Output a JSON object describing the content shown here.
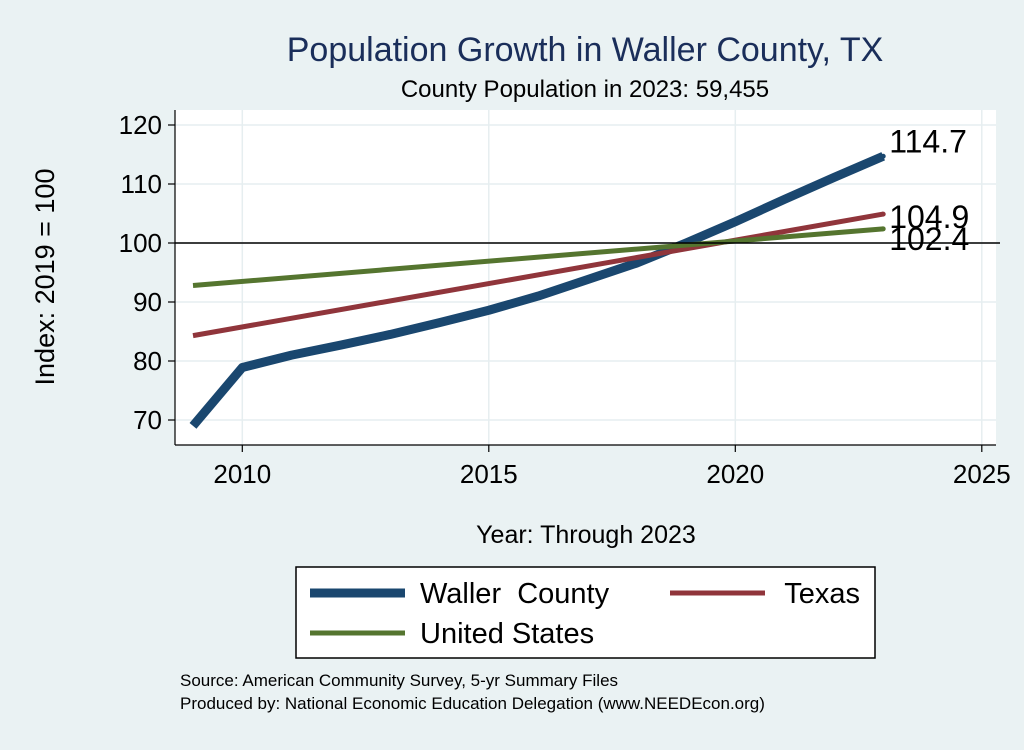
{
  "chart_data": {
    "type": "line",
    "title": "Population Growth in Waller County, TX",
    "subtitle": "County Population in 2023: 59,455",
    "xlabel": "Year: Through 2023",
    "ylabel": "Index: 2019 = 100",
    "xlim": [
      2009,
      2025
    ],
    "ylim": [
      66,
      122
    ],
    "xticks": [
      2010,
      2015,
      2020,
      2025
    ],
    "yticks": [
      70,
      80,
      90,
      100,
      110,
      120
    ],
    "reference_line": 100,
    "grid": true,
    "legend_position": "bottom",
    "series": [
      {
        "name": "Waller  County",
        "color": "#1a476f",
        "x": [
          2009,
          2010,
          2011,
          2012,
          2013,
          2014,
          2015,
          2016,
          2017,
          2018,
          2019,
          2020,
          2021,
          2022,
          2023
        ],
        "values": [
          69.0,
          78.9,
          81.0,
          82.7,
          84.5,
          86.5,
          88.6,
          91.0,
          93.8,
          96.6,
          100.0,
          103.6,
          107.4,
          111.1,
          114.7
        ],
        "end_label": "114.7"
      },
      {
        "name": "Texas",
        "color": "#90353b",
        "x": [
          2009,
          2023
        ],
        "values": [
          84.3,
          104.9
        ],
        "end_label": "104.9"
      },
      {
        "name": "United States",
        "color": "#55752f",
        "x": [
          2009,
          2023
        ],
        "values": [
          92.8,
          102.4
        ],
        "end_label": "102.4"
      }
    ],
    "source_lines": [
      "Source: American Community Survey, 5-yr Summary Files",
      "Produced by: National Economic Education Delegation (www.NEEDEcon.org)"
    ]
  }
}
